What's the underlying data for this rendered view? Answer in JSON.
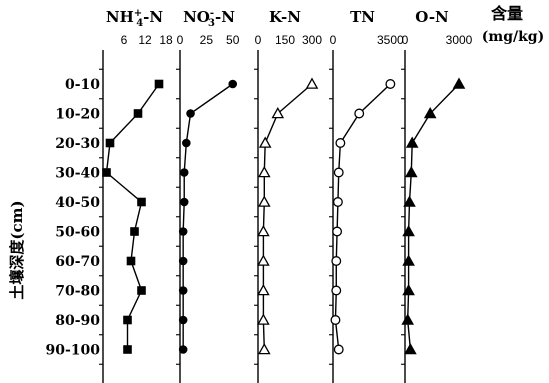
{
  "chart_data": {
    "type": "line",
    "ylabel": "土壤深度(cm)",
    "depth_categories": [
      "0-10",
      "10-20",
      "20-30",
      "30-40",
      "40-50",
      "50-60",
      "60-70",
      "70-80",
      "80-90",
      "90-100"
    ],
    "unit_label": {
      "line1": "含量",
      "line2": "(mg/kg)"
    },
    "panels": [
      {
        "name": "NH4+-N",
        "title_main": "NH",
        "title_sub": "4",
        "title_sup": "+",
        "title_rest": "-N",
        "xlim": [
          0,
          18
        ],
        "ticks": [
          {
            "value": 6,
            "label": "6"
          },
          {
            "value": 12,
            "label": "12"
          },
          {
            "value": 18,
            "label": "18"
          }
        ],
        "marker": "square-filled",
        "values": [
          16,
          10,
          2,
          1,
          11,
          9,
          8,
          11,
          7,
          7
        ]
      },
      {
        "name": "NO3--N",
        "title_main": "NO",
        "title_sub": "3",
        "title_sup": "-",
        "title_rest": "-N",
        "xlim": [
          0,
          55
        ],
        "ticks": [
          {
            "value": 0,
            "label": "0"
          },
          {
            "value": 25,
            "label": "25"
          },
          {
            "value": 50,
            "label": "50"
          }
        ],
        "marker": "circle-filled",
        "values": [
          50,
          10,
          6,
          4,
          4,
          3,
          3,
          3,
          3,
          3
        ]
      },
      {
        "name": "K-N",
        "title_main": "K-N",
        "xlim": [
          0,
          300
        ],
        "ticks": [
          {
            "value": 0,
            "label": "0"
          },
          {
            "value": 150,
            "label": "150"
          },
          {
            "value": 300,
            "label": "300"
          }
        ],
        "marker": "triangle-open",
        "values": [
          300,
          110,
          40,
          35,
          35,
          30,
          30,
          30,
          30,
          35
        ]
      },
      {
        "name": "TN",
        "title_main": "TN",
        "xlim": [
          0,
          3600
        ],
        "ticks": [
          {
            "value": 0,
            "label": "0"
          },
          {
            "value": 3500,
            "label": "3500"
          }
        ],
        "marker": "circle-open",
        "values": [
          3500,
          1600,
          450,
          350,
          300,
          250,
          200,
          200,
          150,
          350
        ]
      },
      {
        "name": "O-N",
        "title_main": "O-N",
        "xlim": [
          0,
          3000
        ],
        "ticks": [
          {
            "value": 0,
            "label": "0"
          },
          {
            "value": 3000,
            "label": "3000"
          }
        ],
        "marker": "triangle-filled",
        "values": [
          3000,
          1400,
          400,
          350,
          250,
          200,
          200,
          200,
          150,
          300
        ]
      }
    ]
  }
}
